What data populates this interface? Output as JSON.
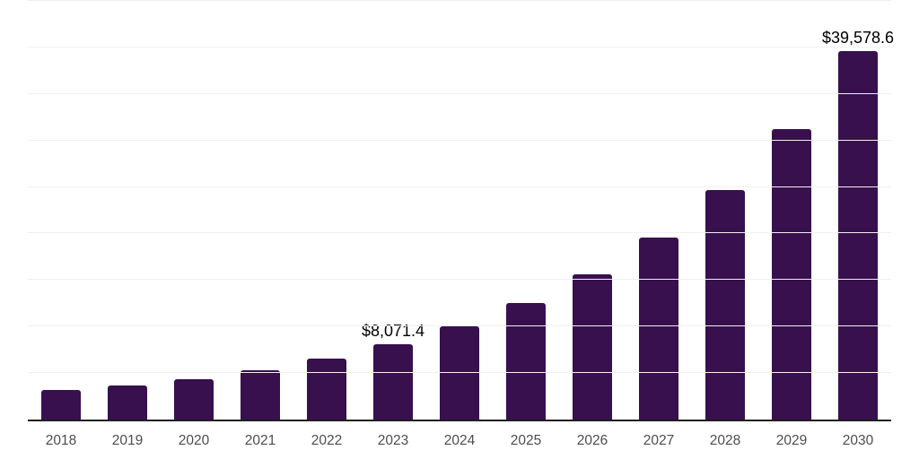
{
  "chart_data": {
    "type": "bar",
    "title": "",
    "xlabel": "",
    "ylabel": "",
    "categories": [
      "2018",
      "2019",
      "2020",
      "2021",
      "2022",
      "2023",
      "2024",
      "2025",
      "2026",
      "2027",
      "2028",
      "2029",
      "2030"
    ],
    "values": [
      3180,
      3660,
      4290,
      5320,
      6590,
      8071.4,
      10010,
      12500,
      15640,
      19590,
      24640,
      31180,
      39578.6
    ],
    "value_labels": [
      null,
      null,
      null,
      null,
      null,
      "$8,071.4",
      null,
      null,
      null,
      null,
      null,
      null,
      "$39,578.6"
    ],
    "ylim": [
      0,
      45000
    ],
    "grid_step": 5000,
    "grid": "horizontal",
    "legend": "none",
    "colors": {
      "bar": "#37104D",
      "grid": "#f0f0f0",
      "axis": "#1f1f1f",
      "tick_label": "#4d4d4d",
      "value_label": "#000000"
    }
  }
}
